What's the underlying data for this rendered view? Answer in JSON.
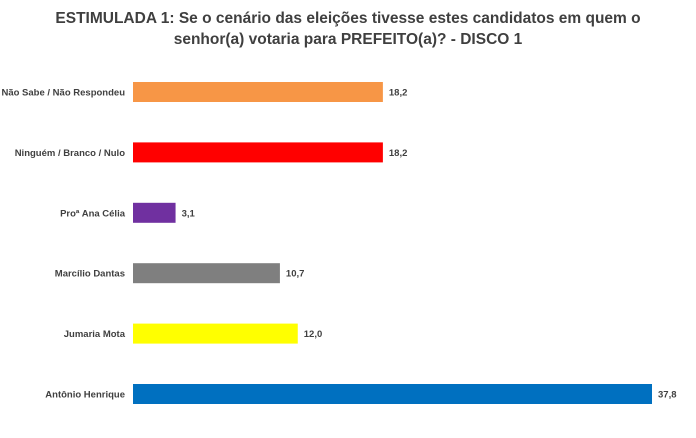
{
  "chart_data": {
    "type": "bar",
    "orientation": "horizontal",
    "title_lines": [
      "ESTIMULADA 1: Se o cenário das eleições tivesse estes candidatos em quem o",
      "senhor(a) votaria para PREFEITO(a)? - DISCO 1"
    ],
    "categories": [
      "Não Sabe / Não Respondeu",
      "Ninguém / Branco / Nulo",
      "Proª Ana Célia",
      "Marcílio Dantas",
      "Jumaria Mota",
      "Antônio Henrique"
    ],
    "values": [
      18.2,
      18.2,
      3.1,
      10.7,
      12.0,
      37.8
    ],
    "value_labels": [
      "18,2",
      "18,2",
      "3,1",
      "10,7",
      "12,0",
      "37,8"
    ],
    "colors": [
      "#F79646",
      "#FF0000",
      "#7030A0",
      "#7F7F7F",
      "#FFFF00",
      "#0070C0"
    ],
    "xlim": [
      0,
      37.8
    ],
    "grid": false,
    "legend": "none"
  }
}
